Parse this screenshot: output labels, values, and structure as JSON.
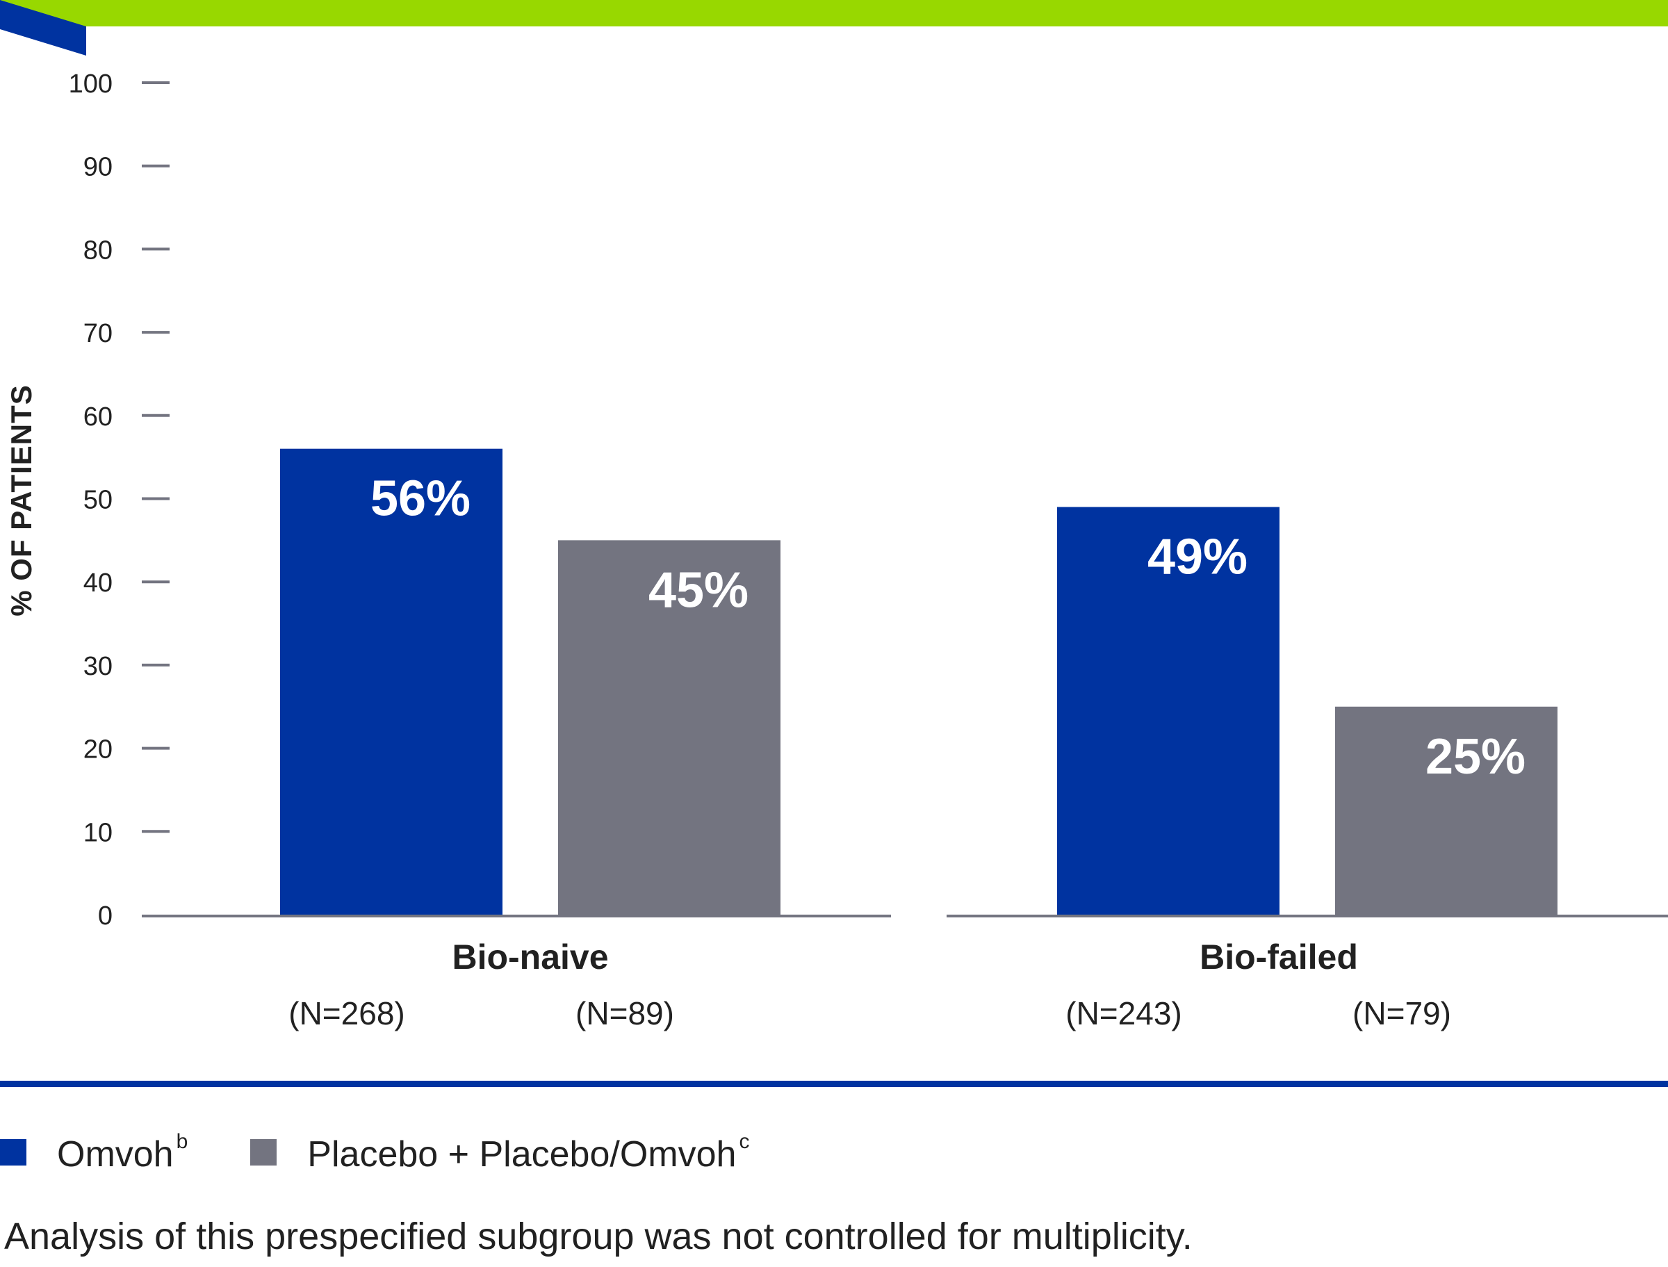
{
  "colors": {
    "accent_bar": "#98d800",
    "omvoh": "#0033a0",
    "placebo": "#737480",
    "axis": "#737480"
  },
  "chart_data": {
    "type": "bar",
    "ylabel": "% OF PATIENTS",
    "ylim": [
      0,
      100
    ],
    "yticks": [
      0,
      10,
      20,
      30,
      40,
      50,
      60,
      70,
      80,
      90,
      100
    ],
    "categories": [
      "Bio-naive",
      "Bio-failed"
    ],
    "series": [
      {
        "name": "Omvoh",
        "values": [
          56,
          49
        ],
        "labels": [
          "56%",
          "49%"
        ],
        "n": [
          "(N=268)",
          "(N=243)"
        ],
        "color": "#0033a0"
      },
      {
        "name": "Placebo + Placebo/Omvoh",
        "values": [
          45,
          25
        ],
        "labels": [
          "45%",
          "25%"
        ],
        "n": [
          "(N=89)",
          "(N=79)"
        ],
        "color": "#737480"
      }
    ],
    "grid": false,
    "legend_position": "bottom-left"
  },
  "legend": [
    {
      "label": "Omvoh",
      "sup": "b",
      "color": "#0033a0"
    },
    {
      "label": "Placebo + Placebo/Omvoh",
      "sup": "c",
      "color": "#737480"
    }
  ],
  "footnote": "Analysis of this prespecified subgroup was not controlled for multiplicity."
}
